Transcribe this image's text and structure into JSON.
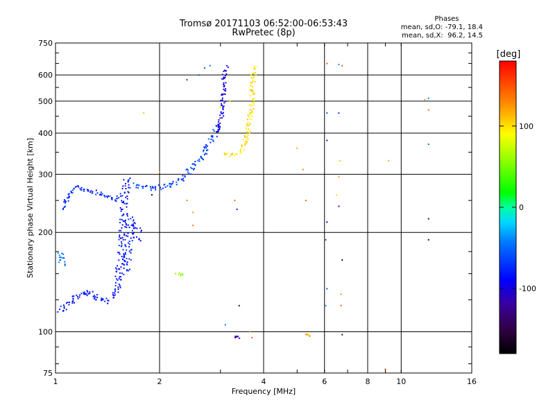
{
  "chart_data": {
    "type": "scatter",
    "title": "Tromsø 20171103 06:52:00-06:53:43",
    "subtitle": "RwPretec (8p)",
    "xlabel": "Frequency [MHz]",
    "ylabel": "Stationary phase Virtual Height [km]",
    "x_scale": "log",
    "y_scale": "log",
    "xlim": [
      1,
      16
    ],
    "ylim": [
      75,
      750
    ],
    "x_ticks": [
      1,
      2,
      4,
      6,
      8,
      10,
      16
    ],
    "x_tick_labels": [
      "1",
      "2",
      "4",
      "6",
      "8",
      "10",
      "16"
    ],
    "y_ticks": [
      75,
      100,
      200,
      300,
      400,
      500,
      600,
      750
    ],
    "y_tick_labels": [
      "75",
      "100",
      "200",
      "300",
      "400",
      "500",
      "600",
      "750"
    ],
    "grid": true,
    "phase_stats": {
      "title": "Phases",
      "line_o": "mean, sd,O: -79.1, 18.4",
      "line_x": "mean, sd,X:  96.2, 14.5"
    },
    "colorbar": {
      "label": "[deg]",
      "min": -180,
      "max": 180,
      "ticks": [
        100,
        0,
        -100
      ],
      "tick_labels": [
        "100",
        "0",
        "-100"
      ]
    },
    "traces": [
      {
        "phase": -85,
        "jitter": 0.018,
        "points": [
          [
            1.02,
            116
          ],
          [
            1.05,
            118
          ],
          [
            1.08,
            121
          ],
          [
            1.12,
            124
          ],
          [
            1.16,
            128
          ],
          [
            1.2,
            131
          ],
          [
            1.25,
            133
          ],
          [
            1.3,
            128
          ],
          [
            1.35,
            124
          ],
          [
            1.4,
            123
          ],
          [
            1.45,
            126
          ],
          [
            1.5,
            135
          ],
          [
            1.52,
            150
          ],
          [
            1.55,
            165
          ],
          [
            1.56,
            185
          ],
          [
            1.57,
            210
          ],
          [
            1.58,
            240
          ],
          [
            1.6,
            270
          ],
          [
            1.62,
            295
          ]
        ]
      },
      {
        "phase": -80,
        "jitter": 0.022,
        "points": [
          [
            1.58,
            150
          ],
          [
            1.6,
            165
          ],
          [
            1.62,
            180
          ],
          [
            1.64,
            200
          ],
          [
            1.66,
            220
          ],
          [
            1.7,
            210
          ],
          [
            1.75,
            190
          ]
        ]
      },
      {
        "phase": -75,
        "jitter": 0.01,
        "points": [
          [
            1.05,
            235
          ],
          [
            1.1,
            260
          ],
          [
            1.15,
            275
          ],
          [
            1.2,
            270
          ],
          [
            1.3,
            265
          ],
          [
            1.4,
            258
          ],
          [
            1.5,
            250
          ],
          [
            1.55,
            262
          ]
        ]
      },
      {
        "phase": -65,
        "jitter": 0.015,
        "points": [
          [
            1.7,
            280
          ],
          [
            1.8,
            275
          ],
          [
            1.9,
            272
          ],
          [
            2.0,
            274
          ],
          [
            2.1,
            278
          ],
          [
            2.2,
            282
          ],
          [
            2.3,
            290
          ],
          [
            2.4,
            300
          ],
          [
            2.5,
            315
          ],
          [
            2.6,
            330
          ],
          [
            2.7,
            350
          ],
          [
            2.8,
            375
          ],
          [
            2.9,
            400
          ],
          [
            2.95,
            430
          ]
        ]
      },
      {
        "phase": -100,
        "jitter": 0.012,
        "points": [
          [
            2.95,
            400
          ],
          [
            3.0,
            430
          ],
          [
            3.02,
            460
          ],
          [
            3.05,
            500
          ],
          [
            3.07,
            540
          ],
          [
            3.08,
            580
          ],
          [
            3.1,
            620
          ],
          [
            3.12,
            640
          ]
        ]
      },
      {
        "phase": 100,
        "jitter": 0.012,
        "points": [
          [
            3.1,
            345
          ],
          [
            3.2,
            342
          ],
          [
            3.3,
            343
          ],
          [
            3.4,
            350
          ],
          [
            3.5,
            365
          ],
          [
            3.55,
            385
          ],
          [
            3.6,
            410
          ],
          [
            3.65,
            440
          ],
          [
            3.68,
            470
          ],
          [
            3.7,
            510
          ],
          [
            3.72,
            560
          ],
          [
            3.75,
            610
          ],
          [
            3.76,
            640
          ]
        ]
      },
      {
        "phase": -50,
        "jitter": 0.015,
        "points": [
          [
            1.02,
            165
          ],
          [
            1.04,
            172
          ],
          [
            1.05,
            160
          ]
        ]
      },
      {
        "phase": 60,
        "jitter": 0.008,
        "points": [
          [
            2.25,
            150
          ],
          [
            2.3,
            148
          ],
          [
            2.35,
            149
          ]
        ]
      },
      {
        "phase": -110,
        "jitter": 0.006,
        "points": [
          [
            3.3,
            96
          ],
          [
            3.35,
            97
          ],
          [
            3.4,
            96
          ]
        ]
      },
      {
        "phase": 115,
        "jitter": 0.004,
        "points": [
          [
            5.3,
            98
          ],
          [
            5.4,
            98
          ],
          [
            5.45,
            97
          ]
        ]
      }
    ],
    "scattered": [
      {
        "x": 6.1,
        "y": 650,
        "phase": 150
      },
      {
        "x": 6.6,
        "y": 645,
        "phase": -40
      },
      {
        "x": 6.75,
        "y": 640,
        "phase": 150
      },
      {
        "x": 6.1,
        "y": 460,
        "phase": -60
      },
      {
        "x": 6.6,
        "y": 460,
        "phase": -70
      },
      {
        "x": 6.1,
        "y": 380,
        "phase": -120
      },
      {
        "x": 6.65,
        "y": 330,
        "phase": 110
      },
      {
        "x": 6.6,
        "y": 295,
        "phase": 120
      },
      {
        "x": 6.5,
        "y": 260,
        "phase": 100
      },
      {
        "x": 6.6,
        "y": 240,
        "phase": -130
      },
      {
        "x": 6.1,
        "y": 215,
        "phase": -100
      },
      {
        "x": 6.05,
        "y": 190,
        "phase": -60
      },
      {
        "x": 6.75,
        "y": 165,
        "phase": -160
      },
      {
        "x": 6.1,
        "y": 135,
        "phase": -60
      },
      {
        "x": 6.7,
        "y": 130,
        "phase": 130
      },
      {
        "x": 6.05,
        "y": 120,
        "phase": -40
      },
      {
        "x": 6.7,
        "y": 120,
        "phase": 150
      },
      {
        "x": 6.75,
        "y": 98,
        "phase": -150
      },
      {
        "x": 9.0,
        "y": 77,
        "phase": 140
      },
      {
        "x": 12.0,
        "y": 510,
        "phase": -40
      },
      {
        "x": 11.7,
        "y": 505,
        "phase": 120
      },
      {
        "x": 12.0,
        "y": 470,
        "phase": 140
      },
      {
        "x": 12.0,
        "y": 370,
        "phase": -50
      },
      {
        "x": 12.0,
        "y": 220,
        "phase": -150
      },
      {
        "x": 12.0,
        "y": 190,
        "phase": -160
      },
      {
        "x": 9.2,
        "y": 330,
        "phase": 120
      },
      {
        "x": 5.0,
        "y": 360,
        "phase": 120
      },
      {
        "x": 5.2,
        "y": 310,
        "phase": 130
      },
      {
        "x": 5.3,
        "y": 250,
        "phase": 140
      },
      {
        "x": 1.8,
        "y": 460,
        "phase": 110
      },
      {
        "x": 2.4,
        "y": 250,
        "phase": 130
      },
      {
        "x": 2.5,
        "y": 230,
        "phase": 120
      },
      {
        "x": 2.5,
        "y": 210,
        "phase": 140
      },
      {
        "x": 3.3,
        "y": 250,
        "phase": 140
      },
      {
        "x": 3.35,
        "y": 235,
        "phase": -80
      },
      {
        "x": 3.4,
        "y": 120,
        "phase": -150
      },
      {
        "x": 3.1,
        "y": 105,
        "phase": -50
      },
      {
        "x": 3.65,
        "y": 100,
        "phase": 130
      },
      {
        "x": 3.7,
        "y": 96,
        "phase": 140
      },
      {
        "x": 2.4,
        "y": 580,
        "phase": -70
      },
      {
        "x": 2.6,
        "y": 600,
        "phase": -60
      },
      {
        "x": 2.7,
        "y": 630,
        "phase": -55
      },
      {
        "x": 2.8,
        "y": 640,
        "phase": -50
      },
      {
        "x": 3.0,
        "y": 480,
        "phase": 100
      },
      {
        "x": 3.2,
        "y": 500,
        "phase": 110
      },
      {
        "x": 1.9,
        "y": 260,
        "phase": -170
      },
      {
        "x": 2.0,
        "y": 305,
        "phase": 120
      }
    ]
  }
}
